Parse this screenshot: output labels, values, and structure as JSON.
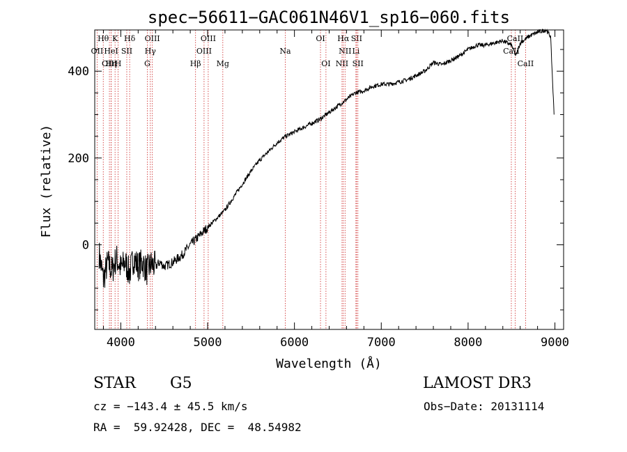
{
  "chart_data": {
    "type": "line",
    "title": "spec−56611−GAC061N46V1_sp16−060.fits",
    "xlabel": "Wavelength (Å)",
    "ylabel": "Flux (relative)",
    "xlim": [
      3700,
      9100
    ],
    "ylim": [
      -195,
      495
    ],
    "xticks": [
      4000,
      5000,
      6000,
      7000,
      8000,
      9000
    ],
    "xtick_labels": [
      "4000",
      "5000",
      "6000",
      "7000",
      "8000",
      "9000"
    ],
    "yticks": [
      0,
      200,
      400
    ],
    "ytick_labels": [
      "0",
      "200",
      "400"
    ],
    "series": [
      {
        "name": "spectrum",
        "x": [
          3750,
          3800,
          3850,
          3900,
          3950,
          4000,
          4050,
          4100,
          4150,
          4200,
          4250,
          4300,
          4350,
          4400,
          4450,
          4500,
          4600,
          4700,
          4800,
          4900,
          5000,
          5100,
          5200,
          5300,
          5400,
          5500,
          5600,
          5700,
          5800,
          5900,
          6000,
          6100,
          6200,
          6300,
          6400,
          6500,
          6600,
          6700,
          6800,
          6900,
          7000,
          7100,
          7200,
          7300,
          7400,
          7500,
          7600,
          7700,
          7800,
          7900,
          8000,
          8100,
          8200,
          8300,
          8400,
          8500,
          8550,
          8600,
          8700,
          8800,
          8900,
          8950,
          8990
        ],
        "y": [
          -20,
          -80,
          -40,
          -60,
          -30,
          -55,
          -40,
          -65,
          -30,
          -50,
          -40,
          -60,
          -45,
          -50,
          -40,
          -50,
          -40,
          -25,
          0,
          20,
          40,
          60,
          80,
          110,
          140,
          170,
          195,
          215,
          235,
          250,
          260,
          270,
          280,
          290,
          305,
          320,
          335,
          350,
          355,
          365,
          370,
          370,
          375,
          380,
          390,
          400,
          420,
          415,
          425,
          435,
          450,
          460,
          460,
          465,
          470,
          460,
          435,
          465,
          480,
          490,
          495,
          480,
          300
        ]
      }
    ],
    "emission_lines": [
      {
        "label": "Hθ",
        "x": 3798,
        "row": 1
      },
      {
        "label": "OII",
        "x": 3727,
        "row": 2
      },
      {
        "label": "OIII",
        "x": 3869,
        "row": 3
      },
      {
        "label": "K",
        "x": 3934,
        "row": 1
      },
      {
        "label": "Hη",
        "x": 3889,
        "row": 3
      },
      {
        "label": "HeI",
        "x": 3889,
        "row": 2
      },
      {
        "label": "H",
        "x": 3969,
        "row": 3
      },
      {
        "label": "SII",
        "x": 4069,
        "row": 2
      },
      {
        "label": "Hδ",
        "x": 4102,
        "row": 1
      },
      {
        "label": "OIII",
        "x": 4363,
        "row": 1
      },
      {
        "label": "Hγ",
        "x": 4340,
        "row": 2
      },
      {
        "label": "G",
        "x": 4305,
        "row": 3
      },
      {
        "label": "Hβ",
        "x": 4861,
        "row": 3
      },
      {
        "label": "OIII",
        "x": 4959,
        "row": 2
      },
      {
        "label": "OIII",
        "x": 5007,
        "row": 1
      },
      {
        "label": "Mg",
        "x": 5175,
        "row": 3
      },
      {
        "label": "Na",
        "x": 5894,
        "row": 2
      },
      {
        "label": "OI",
        "x": 6300,
        "row": 1
      },
      {
        "label": "OI",
        "x": 6363,
        "row": 3
      },
      {
        "label": "NII",
        "x": 6548,
        "row": 3
      },
      {
        "label": "NII",
        "x": 6583,
        "row": 2
      },
      {
        "label": "Hα",
        "x": 6563,
        "row": 1
      },
      {
        "label": "SII",
        "x": 6716,
        "row": 1
      },
      {
        "label": "Li",
        "x": 6708,
        "row": 2
      },
      {
        "label": "SII",
        "x": 6731,
        "row": 3
      },
      {
        "label": "CaII",
        "x": 8498,
        "row": 2
      },
      {
        "label": "CaII",
        "x": 8542,
        "row": 1
      },
      {
        "label": "CaII",
        "x": 8662,
        "row": 3
      }
    ]
  },
  "info": {
    "class": "STAR",
    "subclass": "G5",
    "survey": "LAMOST DR3",
    "cz": "cz = −143.4 ± 45.5 km/s",
    "obs_date": "Obs−Date: 20131114",
    "coords": "RA =  59.92428, DEC =  48.54982"
  },
  "colors": {
    "line": "#000000",
    "marker": "#cc2222"
  }
}
